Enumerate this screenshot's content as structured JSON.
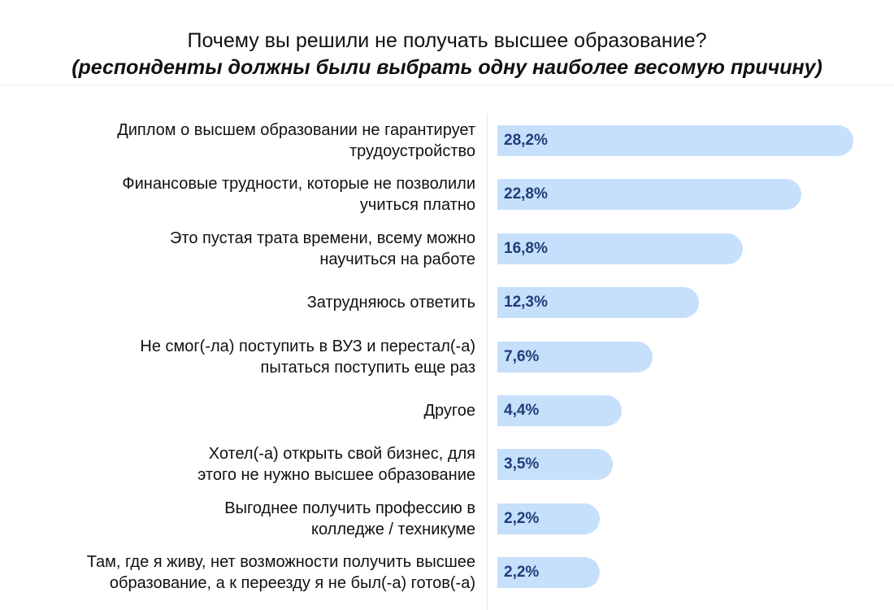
{
  "chart_data": {
    "type": "bar",
    "orientation": "horizontal",
    "title": "Почему вы решили не получать высшее образование?",
    "subtitle": "(респонденты должны были выбрать одну наиболее весомую причину)",
    "categories": [
      "Диплом о высшем образовании не гарантирует трудоустройство",
      "Финансовые трудности, которые не позволили учиться платно",
      "Это пустая трата времени, всему можно научиться на работе",
      "Затрудняюсь ответить",
      "Не смог(-ла) поступить в ВУЗ и перестал(-а) пытаться поступить еще раз",
      "Другое",
      "Хотел(-а) открыть свой бизнес, для этого не нужно высшее образование",
      "Выгоднее получить профессию в колледже / техникуме",
      "Там, где я живу, нет возможности получить высшее образование, а к переезду я не был(-а) готов(-а)"
    ],
    "label_lines": [
      [
        "Диплом о высшем образовании не гарантирует",
        "трудоустройство"
      ],
      [
        "Финансовые трудности, которые не позволили",
        "учиться платно"
      ],
      [
        "Это пустая трата времени, всему можно",
        "научиться на работе"
      ],
      [
        "Затрудняюсь ответить"
      ],
      [
        "Не смог(-ла) поступить в ВУЗ и перестал(-а)",
        "пытаться поступить еще раз"
      ],
      [
        "Другое"
      ],
      [
        "Хотел(-а) открыть свой бизнес, для",
        "этого не нужно высшее образование"
      ],
      [
        "Выгоднее получить профессию в",
        "колледже / техникуме"
      ],
      [
        "Там, где я живу, нет возможности получить высшее",
        "образование, а к переезду я не был(-а) готов(-а)"
      ]
    ],
    "values": [
      28.2,
      22.8,
      16.8,
      12.3,
      7.6,
      4.4,
      3.5,
      2.2,
      2.2
    ],
    "data_labels": [
      "28,2%",
      "22,8%",
      "16,8%",
      "12,3%",
      "7,6%",
      "4,4%",
      "3,5%",
      "2,2%",
      "2,2%"
    ],
    "unit": "%",
    "grid": false,
    "legend": "none",
    "colors": {
      "bar": "#C6DFFB",
      "value_text": "#1E3E78",
      "text": "#111111"
    }
  }
}
